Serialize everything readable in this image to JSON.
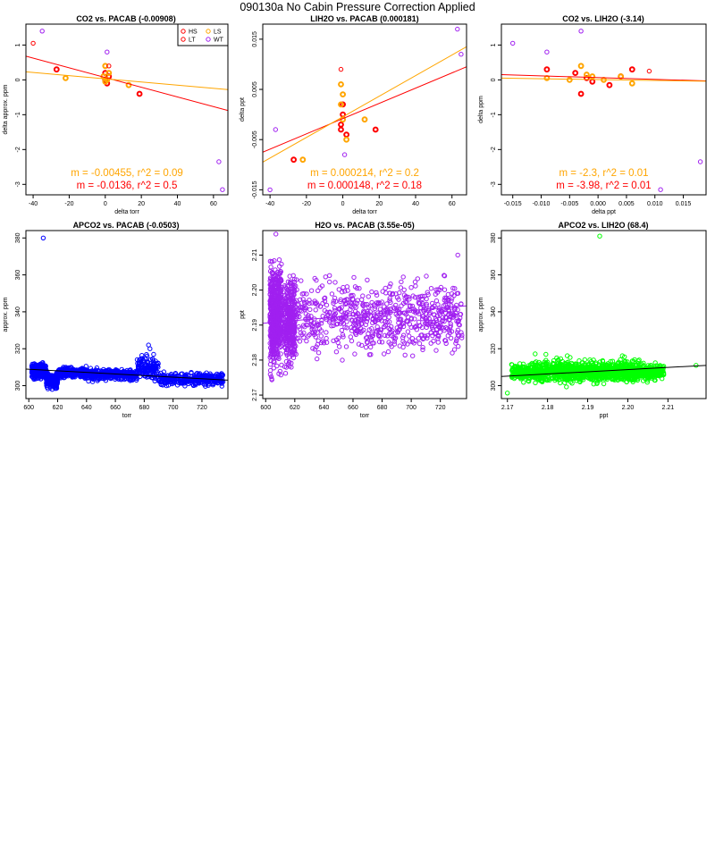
{
  "page_title": "090130a   No Cabin Pressure Correction Applied",
  "colors": {
    "HS": "#ff0000",
    "LS": "#ffa500",
    "LT": "#ff0000",
    "WT": "#a020f0",
    "blue": "#0000ff",
    "purple": "#a020f0",
    "green": "#00ff00"
  },
  "chart_data": [
    {
      "type": "scatter",
      "title": "CO2 vs. PACAB (-0.00908)",
      "xlabel": "delta torr",
      "ylabel": "delta approx. ppm",
      "xlim": [
        -44,
        68
      ],
      "ylim": [
        -3.3,
        1.6
      ],
      "xticks": [
        -40,
        -20,
        0,
        20,
        40,
        60
      ],
      "yticks": [
        -3,
        -2,
        -1,
        0,
        1
      ],
      "xtick_labels": [
        "-40",
        "-20",
        "0",
        "20",
        "40",
        "60"
      ],
      "ytick_labels": [
        "-3",
        "-2",
        "-1",
        "0",
        "1"
      ],
      "legend": {
        "placement": "top-right",
        "entries": [
          "HS",
          "LS",
          "LT",
          "WT"
        ]
      },
      "series": [
        {
          "name": "HS",
          "color": "#ff0000",
          "marker": "circle-thick",
          "points": [
            [
              -27,
              0.3
            ],
            [
              0,
              0.2
            ],
            [
              0,
              0.0
            ],
            [
              1,
              -0.1
            ],
            [
              2,
              0.1
            ],
            [
              19,
              -0.4
            ]
          ]
        },
        {
          "name": "LS",
          "color": "#ffa500",
          "marker": "circle-thick",
          "points": [
            [
              -22,
              0.05
            ],
            [
              -1,
              0.1
            ],
            [
              0,
              0.4
            ],
            [
              1,
              0.0
            ],
            [
              2,
              0.2
            ],
            [
              13,
              -0.15
            ],
            [
              0,
              -0.05
            ]
          ]
        },
        {
          "name": "LT",
          "color": "#ff0000",
          "marker": "circle",
          "points": [
            [
              -40,
              1.05
            ],
            [
              2,
              0.4
            ]
          ]
        },
        {
          "name": "WT",
          "color": "#a020f0",
          "marker": "circle",
          "points": [
            [
              -35,
              1.4
            ],
            [
              1,
              0.8
            ],
            [
              63,
              -2.35
            ],
            [
              65,
              -3.15
            ]
          ]
        }
      ],
      "lines": [
        {
          "color": "#ff0000",
          "from": [
            -44,
            0.68
          ],
          "to": [
            68,
            -0.88
          ]
        },
        {
          "color": "#ffa500",
          "from": [
            -44,
            0.23
          ],
          "to": [
            68,
            -0.28
          ]
        }
      ],
      "annotations": [
        {
          "text": "m = -0.00455, r^2 = 0.09",
          "color": "#ffa500"
        },
        {
          "text": "m = -0.0136, r^2 = 0.5",
          "color": "#ff0000"
        }
      ]
    },
    {
      "type": "scatter",
      "title": "LIH2O vs. PACAB (0.000181)",
      "xlabel": "delta torr",
      "ylabel": "delta ppt",
      "xlim": [
        -44,
        68
      ],
      "ylim": [
        -0.016,
        0.018
      ],
      "xticks": [
        -40,
        -20,
        0,
        20,
        40,
        60
      ],
      "yticks": [
        -0.015,
        -0.005,
        0.005,
        0.015
      ],
      "xtick_labels": [
        "-40",
        "-20",
        "0",
        "20",
        "40",
        "60"
      ],
      "ytick_labels": [
        "-0.015",
        "-0.005",
        "0.005",
        "0.015"
      ],
      "series": [
        {
          "name": "HS",
          "color": "#ff0000",
          "marker": "circle-thick",
          "points": [
            [
              -27,
              -0.009
            ],
            [
              -1,
              -0.002
            ],
            [
              0,
              0.002
            ],
            [
              -1,
              -0.003
            ],
            [
              2,
              -0.004
            ],
            [
              18,
              -0.003
            ],
            [
              0,
              0.0
            ]
          ]
        },
        {
          "name": "LS",
          "color": "#ffa500",
          "marker": "circle-thick",
          "points": [
            [
              -22,
              -0.009
            ],
            [
              -1,
              0.006
            ],
            [
              0,
              0.004
            ],
            [
              2,
              -0.005
            ],
            [
              12,
              -0.001
            ],
            [
              0,
              -0.001
            ],
            [
              -1,
              0.002
            ]
          ]
        },
        {
          "name": "LT",
          "color": "#ff0000",
          "marker": "circle",
          "points": [
            [
              -1,
              0.009
            ]
          ]
        },
        {
          "name": "WT",
          "color": "#a020f0",
          "marker": "circle",
          "points": [
            [
              -40,
              -0.015
            ],
            [
              -37,
              -0.003
            ],
            [
              1,
              -0.008
            ],
            [
              63,
              0.017
            ],
            [
              65,
              0.012
            ]
          ]
        }
      ],
      "lines": [
        {
          "color": "#ff0000",
          "from": [
            -44,
            -0.0075
          ],
          "to": [
            68,
            0.0095
          ]
        },
        {
          "color": "#ffa500",
          "from": [
            -44,
            -0.0095
          ],
          "to": [
            68,
            0.0135
          ]
        }
      ],
      "annotations": [
        {
          "text": "m = 0.000214, r^2 = 0.2",
          "color": "#ffa500"
        },
        {
          "text": "m = 0.000148, r^2 = 0.18",
          "color": "#ff0000"
        }
      ]
    },
    {
      "type": "scatter",
      "title": "CO2 vs. LIH2O (-3.14)",
      "xlabel": "delta ppt",
      "ylabel": "delta ppm",
      "xlim": [
        -0.017,
        0.019
      ],
      "ylim": [
        -3.3,
        1.6
      ],
      "xticks": [
        -0.015,
        -0.01,
        -0.005,
        0,
        0.005,
        0.01,
        0.015
      ],
      "yticks": [
        -3,
        -2,
        -1,
        0,
        1
      ],
      "xtick_labels": [
        "-0.015",
        "-0.010",
        "-0.005",
        "0.000",
        "0.005",
        "0.010",
        "0.015"
      ],
      "ytick_labels": [
        "-3",
        "-2",
        "-1",
        "0",
        "1"
      ],
      "series": [
        {
          "name": "HS",
          "color": "#ff0000",
          "marker": "circle-thick",
          "points": [
            [
              -0.009,
              0.3
            ],
            [
              -0.004,
              0.2
            ],
            [
              -0.003,
              -0.4
            ],
            [
              -0.001,
              -0.05
            ],
            [
              0.002,
              -0.15
            ],
            [
              0.004,
              0.1
            ],
            [
              0.006,
              0.3
            ],
            [
              -0.002,
              0.05
            ]
          ]
        },
        {
          "name": "LS",
          "color": "#ffa500",
          "marker": "circle-thick",
          "points": [
            [
              -0.009,
              0.05
            ],
            [
              -0.005,
              0.0
            ],
            [
              -0.003,
              0.4
            ],
            [
              -0.002,
              0.15
            ],
            [
              0.001,
              0.0
            ],
            [
              0.004,
              0.1
            ],
            [
              0.006,
              -0.1
            ],
            [
              -0.001,
              0.1
            ]
          ]
        },
        {
          "name": "LT",
          "color": "#ff0000",
          "marker": "circle",
          "points": [
            [
              0.009,
              0.25
            ]
          ]
        },
        {
          "name": "WT",
          "color": "#a020f0",
          "marker": "circle",
          "points": [
            [
              -0.015,
              1.05
            ],
            [
              -0.009,
              0.8
            ],
            [
              -0.003,
              1.4
            ],
            [
              0.011,
              -3.15
            ],
            [
              0.018,
              -2.35
            ]
          ]
        }
      ],
      "lines": [
        {
          "color": "#ff0000",
          "from": [
            -0.017,
            0.15
          ],
          "to": [
            0.019,
            -0.03
          ]
        },
        {
          "color": "#ffa500",
          "from": [
            -0.017,
            0.05
          ],
          "to": [
            0.019,
            -0.04
          ]
        }
      ],
      "annotations": [
        {
          "text": "m = -2.3, r^2 = 0.01",
          "color": "#ffa500"
        },
        {
          "text": "m = -3.98, r^2 = 0.01",
          "color": "#ff0000"
        }
      ]
    },
    {
      "type": "scatter",
      "title": "APCO2 vs. PACAB (-0.0503)",
      "xlabel": "torr",
      "ylabel": "approx. ppm",
      "xlim": [
        598,
        738
      ],
      "ylim": [
        293,
        384
      ],
      "xticks": [
        600,
        620,
        640,
        660,
        680,
        700,
        720
      ],
      "yticks": [
        300,
        320,
        340,
        360,
        380
      ],
      "xtick_labels": [
        "600",
        "620",
        "640",
        "660",
        "680",
        "700",
        "720"
      ],
      "ytick_labels": [
        "300",
        "320",
        "340",
        "360",
        "380"
      ],
      "series": [
        {
          "name": "APCO2",
          "color": "#0000ff",
          "marker": "circle",
          "generated": true,
          "clusters": [
            {
              "xr": [
                602,
                612
              ],
              "yr": [
                303,
                313
              ],
              "n": 300
            },
            {
              "xr": [
                612,
                620
              ],
              "yr": [
                297,
                309
              ],
              "n": 160
            },
            {
              "xr": [
                620,
                640
              ],
              "yr": [
                303,
                311
              ],
              "n": 230
            },
            {
              "xr": [
                640,
                675
              ],
              "yr": [
                302,
                310
              ],
              "n": 330
            },
            {
              "xr": [
                675,
                690
              ],
              "yr": [
                301,
                318
              ],
              "n": 130
            },
            {
              "xr": [
                690,
                735
              ],
              "yr": [
                299,
                308
              ],
              "n": 320
            }
          ],
          "points": [
            [
              610,
              380
            ],
            [
              683,
              322
            ],
            [
              684,
              320
            ],
            [
              682,
              316
            ]
          ]
        }
      ],
      "lines": [
        {
          "color": "#000000",
          "from": [
            598,
            309
          ],
          "to": [
            738,
            303
          ]
        }
      ]
    },
    {
      "type": "scatter",
      "title": "H2O vs. PACAB (3.55e-05)",
      "xlabel": "torr",
      "ylabel": "ppt",
      "xlim": [
        598,
        738
      ],
      "ylim": [
        2.169,
        2.217
      ],
      "xticks": [
        600,
        620,
        640,
        660,
        680,
        700,
        720
      ],
      "yticks": [
        2.17,
        2.18,
        2.19,
        2.2,
        2.21
      ],
      "xtick_labels": [
        "600",
        "620",
        "640",
        "660",
        "680",
        "700",
        "720"
      ],
      "ytick_labels": [
        "2.17",
        "2.18",
        "2.19",
        "2.20",
        "2.21"
      ],
      "series": [
        {
          "name": "H2O",
          "color": "#a020f0",
          "marker": "circle",
          "generated": true,
          "clusters": [
            {
              "xr": [
                603,
                611
              ],
              "yr": [
                2.172,
                2.213
              ],
              "n": 560
            },
            {
              "xr": [
                613,
                620
              ],
              "yr": [
                2.174,
                2.208
              ],
              "n": 360
            },
            {
              "xr": [
                620,
                735
              ],
              "yr": [
                2.178,
                2.207
              ],
              "n": 720
            }
          ],
          "points": [
            [
              607,
              2.216
            ],
            [
              732,
              2.21
            ]
          ]
        }
      ],
      "lines": [
        {
          "color": "#a020f0",
          "from": [
            598,
            2.1905
          ],
          "to": [
            738,
            2.1955
          ]
        }
      ]
    },
    {
      "type": "scatter",
      "title": "APCO2 vs. LIH2O (68.4)",
      "xlabel": "ppt",
      "ylabel": "approx. ppm",
      "xlim": [
        2.1685,
        2.2195
      ],
      "ylim": [
        293,
        384
      ],
      "xticks": [
        2.17,
        2.18,
        2.19,
        2.2,
        2.21
      ],
      "yticks": [
        300,
        320,
        340,
        360,
        380
      ],
      "xtick_labels": [
        "2.17",
        "2.18",
        "2.19",
        "2.20",
        "2.21"
      ],
      "ytick_labels": [
        "300",
        "320",
        "340",
        "360",
        "380"
      ],
      "series": [
        {
          "name": "APCO2",
          "color": "#00ff00",
          "marker": "circle",
          "generated": true,
          "clusters": [
            {
              "xr": [
                2.171,
                2.209
              ],
              "yr": [
                301,
                314
              ],
              "n": 1150
            },
            {
              "xr": [
                2.176,
                2.203
              ],
              "yr": [
                298,
                318
              ],
              "n": 320
            }
          ],
          "points": [
            [
              2.193,
              381
            ],
            [
              2.17,
              296
            ],
            [
              2.217,
              311
            ]
          ]
        }
      ],
      "lines": [
        {
          "color": "#000000",
          "from": [
            2.1685,
            305
          ],
          "to": [
            2.2195,
            311
          ]
        }
      ]
    }
  ]
}
